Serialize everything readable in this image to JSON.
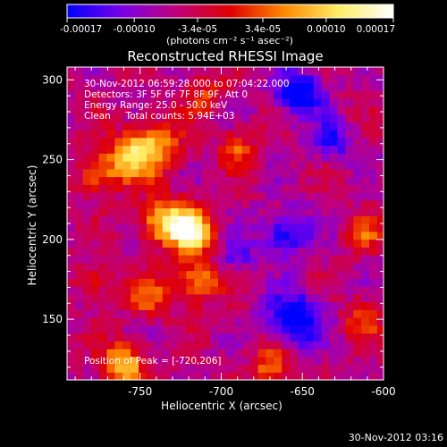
{
  "chart_data": {
    "type": "heatmap",
    "title": "Reconstructed RHESSI Image",
    "xlabel": "Heliocentric X (arcsec)",
    "ylabel": "Heliocentric Y (arcsec)",
    "xlim": [
      -795,
      -600
    ],
    "ylim": [
      112,
      308
    ],
    "x_ticks": [
      -750,
      -700,
      -650,
      -600
    ],
    "y_ticks": [
      150,
      200,
      250,
      300
    ],
    "colorbar": {
      "range": [
        -0.00017,
        0.00017
      ],
      "ticks": [
        -0.00017,
        -0.0001,
        -3.4e-05,
        3.4e-05,
        0.0001,
        0.00017
      ],
      "tick_labels": [
        "-0.00017",
        "-0.00010",
        "-3.4e-05",
        "3.4e-05",
        "0.00010",
        "0.00017"
      ],
      "unit_label": "(photons cm⁻² s⁻¹ asec⁻²)",
      "colors": [
        "#0000ff",
        "#7a00e8",
        "#c0007c",
        "#e00000",
        "#ff8a00",
        "#ffee66",
        "#ffffff"
      ]
    },
    "info_lines": [
      "30-Nov-2012 06:59:28.000 to 07:04:22.000",
      "Detectors: 3F 5F 6F 7F 8F 9F, Att 0",
      "Energy Range: 25.0 - 50.0 keV",
      "Clean     Total counts: 5.94E+03"
    ],
    "peak_label": "Position of Peak = [-720,206]",
    "peak": [
      -720,
      206
    ],
    "sources": [
      {
        "x": -718,
        "y": 206,
        "amp": 1.0,
        "sigma": 9
      },
      {
        "x": -735,
        "y": 212,
        "amp": 0.75,
        "sigma": 10
      },
      {
        "x": -742,
        "y": 258,
        "amp": 0.65,
        "sigma": 12
      },
      {
        "x": -760,
        "y": 250,
        "amp": 0.55,
        "sigma": 10
      },
      {
        "x": -778,
        "y": 240,
        "amp": 0.45,
        "sigma": 8
      },
      {
        "x": -715,
        "y": 175,
        "amp": 0.55,
        "sigma": 10
      },
      {
        "x": -745,
        "y": 165,
        "amp": 0.45,
        "sigma": 9
      },
      {
        "x": -760,
        "y": 122,
        "amp": 0.75,
        "sigma": 9
      },
      {
        "x": -690,
        "y": 258,
        "amp": 0.4,
        "sigma": 8
      },
      {
        "x": -670,
        "y": 122,
        "amp": 0.5,
        "sigma": 8
      },
      {
        "x": -613,
        "y": 150,
        "amp": 0.4,
        "sigma": 8
      },
      {
        "x": -612,
        "y": 205,
        "amp": 0.4,
        "sigma": 8
      },
      {
        "x": -710,
        "y": 290,
        "amp": 0.35,
        "sigma": 8
      },
      {
        "x": -778,
        "y": 175,
        "amp": 0.4,
        "sigma": 7
      },
      {
        "x": -652,
        "y": 292,
        "amp": -0.7,
        "sigma": 10
      },
      {
        "x": -660,
        "y": 205,
        "amp": -0.55,
        "sigma": 10
      },
      {
        "x": -655,
        "y": 150,
        "amp": -0.65,
        "sigma": 12
      },
      {
        "x": -632,
        "y": 262,
        "amp": -0.45,
        "sigma": 9
      },
      {
        "x": -690,
        "y": 190,
        "amp": -0.35,
        "sigma": 8
      }
    ]
  },
  "footer": {
    "timestamp": "30-Nov-2012 03:16"
  }
}
